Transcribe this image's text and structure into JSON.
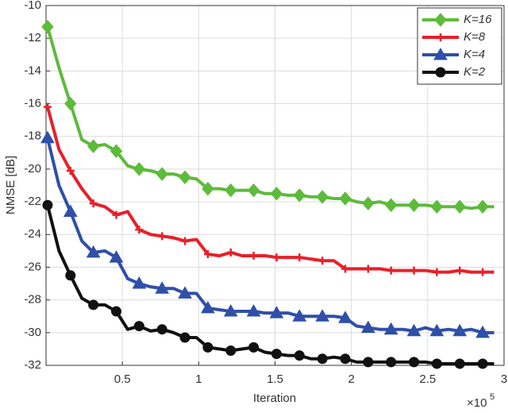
{
  "chart_data": {
    "type": "line",
    "xlabel": "Iteration",
    "ylabel": "NMSE [dB]",
    "x_multiplier": "×10",
    "x_multiplier_exponent": "5",
    "x": [
      0.01,
      0.085,
      0.16,
      0.235,
      0.31,
      0.385,
      0.46,
      0.535,
      0.61,
      0.685,
      0.76,
      0.835,
      0.91,
      0.985,
      1.06,
      1.135,
      1.21,
      1.285,
      1.36,
      1.435,
      1.51,
      1.585,
      1.66,
      1.735,
      1.81,
      1.885,
      1.96,
      2.035,
      2.11,
      2.185,
      2.26,
      2.335,
      2.41,
      2.485,
      2.56,
      2.635,
      2.71,
      2.785,
      2.86,
      2.935
    ],
    "series": [
      {
        "name": "K=16",
        "color": "#5dbb3a",
        "marker": "diamond",
        "values": [
          -11.3,
          -13.8,
          -16.0,
          -18.2,
          -18.6,
          -18.5,
          -18.9,
          -19.8,
          -20.0,
          -20.1,
          -20.3,
          -20.3,
          -20.5,
          -20.6,
          -21.2,
          -21.2,
          -21.3,
          -21.3,
          -21.3,
          -21.5,
          -21.5,
          -21.6,
          -21.6,
          -21.7,
          -21.7,
          -21.8,
          -21.8,
          -22.0,
          -22.1,
          -22.0,
          -22.2,
          -22.2,
          -22.2,
          -22.2,
          -22.3,
          -22.3,
          -22.3,
          -22.4,
          -22.3,
          -22.3
        ]
      },
      {
        "name": "K=8",
        "color": "#e8202a",
        "marker": "plus",
        "values": [
          -16.2,
          -18.8,
          -20.1,
          -21.2,
          -22.1,
          -22.3,
          -22.8,
          -22.6,
          -23.7,
          -24.0,
          -24.1,
          -24.2,
          -24.4,
          -24.3,
          -25.2,
          -25.3,
          -25.1,
          -25.3,
          -25.3,
          -25.3,
          -25.4,
          -25.4,
          -25.4,
          -25.5,
          -25.6,
          -25.6,
          -26.1,
          -26.1,
          -26.1,
          -26.1,
          -26.2,
          -26.2,
          -26.2,
          -26.2,
          -26.3,
          -26.3,
          -26.2,
          -26.3,
          -26.3,
          -26.3
        ]
      },
      {
        "name": "K=4",
        "color": "#2f4fa8",
        "marker": "triangle",
        "values": [
          -18.1,
          -21.0,
          -22.6,
          -24.4,
          -25.1,
          -25.0,
          -25.4,
          -26.7,
          -27.0,
          -27.2,
          -27.3,
          -27.3,
          -27.6,
          -27.6,
          -28.5,
          -28.6,
          -28.7,
          -28.7,
          -28.7,
          -28.8,
          -28.8,
          -28.8,
          -29.0,
          -29.0,
          -29.0,
          -29.0,
          -29.1,
          -29.6,
          -29.7,
          -29.8,
          -29.8,
          -29.8,
          -29.9,
          -29.7,
          -29.9,
          -29.8,
          -29.9,
          -29.8,
          -30.0,
          -30.0
        ]
      },
      {
        "name": "K=2",
        "color": "#111111",
        "marker": "circle",
        "values": [
          -22.2,
          -25.0,
          -26.5,
          -27.9,
          -28.3,
          -28.3,
          -28.7,
          -29.8,
          -29.6,
          -29.9,
          -29.8,
          -30.0,
          -30.3,
          -30.3,
          -30.9,
          -31.0,
          -31.1,
          -31.0,
          -30.9,
          -31.2,
          -31.3,
          -31.4,
          -31.4,
          -31.6,
          -31.6,
          -31.5,
          -31.6,
          -31.8,
          -31.8,
          -31.8,
          -31.8,
          -31.8,
          -31.8,
          -31.8,
          -31.9,
          -31.9,
          -31.9,
          -31.9,
          -31.9,
          -31.9
        ]
      }
    ],
    "xlim": [
      0,
      3
    ],
    "xticks": [
      0.5,
      1,
      1.5,
      2,
      2.5,
      3
    ],
    "ylim": [
      -32,
      -10
    ],
    "yticks": [
      -32,
      -30,
      -28,
      -26,
      -24,
      -22,
      -20,
      -18,
      -16,
      -14,
      -12,
      -10
    ],
    "grid": true,
    "legend": "top-right"
  }
}
